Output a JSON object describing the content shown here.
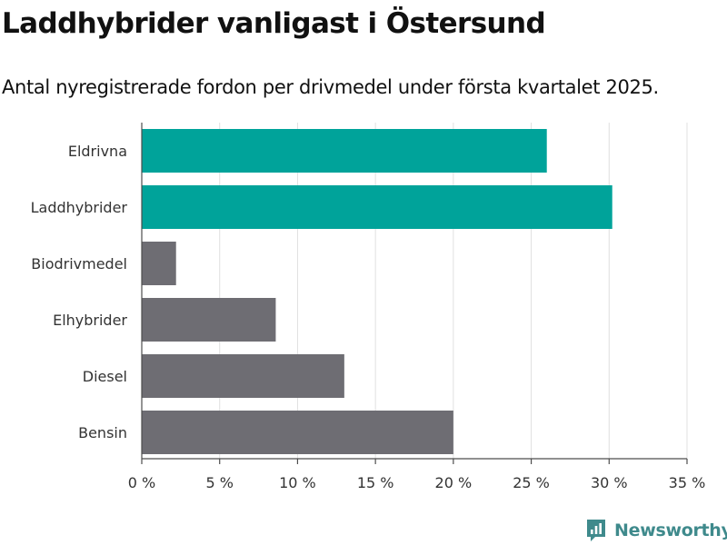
{
  "header": {
    "title": "Laddhybrider vanligast i Östersund",
    "subtitle": "Antal nyregistrerade fordon per drivmedel under första kvartalet 2025."
  },
  "chart_data": {
    "type": "bar",
    "orientation": "horizontal",
    "title": "Laddhybrider vanligast i Östersund",
    "subtitle": "Antal nyregistrerade fordon per drivmedel under första kvartalet 2025.",
    "xlabel": "",
    "ylabel": "",
    "categories": [
      "Eldrivna",
      "Laddhybrider",
      "Biodrivmedel",
      "Elhybrider",
      "Diesel",
      "Bensin"
    ],
    "values": [
      26.0,
      30.2,
      2.2,
      8.6,
      13.0,
      20.0
    ],
    "highlighted": [
      true,
      true,
      false,
      false,
      false,
      false
    ],
    "value_unit": "%",
    "xlim": [
      0,
      35
    ],
    "x_ticks": [
      0,
      5,
      10,
      15,
      20,
      25,
      30,
      35
    ],
    "x_tick_labels": [
      "0 %",
      "5 %",
      "10 %",
      "15 %",
      "20 %",
      "25 %",
      "30 %",
      "35 %"
    ],
    "grid": "vertical",
    "colors": {
      "highlight": "#00a39a",
      "default": "#6e6d73",
      "grid": "#e0e0e0",
      "axis": "#4d4d4d",
      "text": "#333333"
    }
  },
  "footer": {
    "brand_name": "Newsworthy",
    "brand_icon": "newsworthy-logo-icon",
    "brand_color": "#3f8a8c"
  }
}
